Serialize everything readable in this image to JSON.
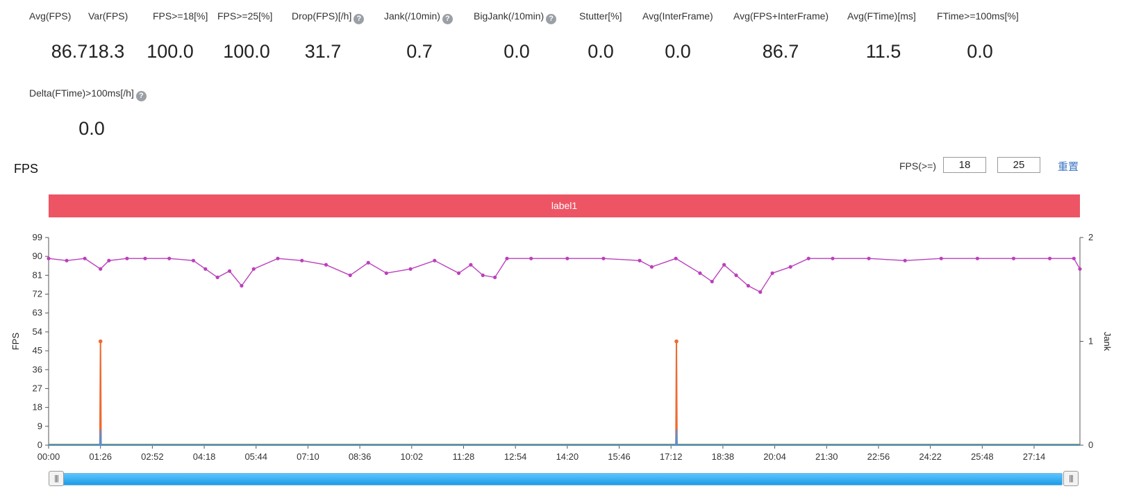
{
  "metrics": [
    {
      "label": "Avg(FPS)",
      "value": "86.7",
      "help": false
    },
    {
      "label": "Var(FPS)",
      "value": "18.3",
      "help": false
    },
    {
      "label": "FPS>=18[%]",
      "value": "100.0",
      "help": false
    },
    {
      "label": "FPS>=25[%]",
      "value": "100.0",
      "help": false
    },
    {
      "label": "Drop(FPS)[/h]",
      "value": "31.7",
      "help": true
    },
    {
      "label": "Jank(/10min)",
      "value": "0.7",
      "help": true
    },
    {
      "label": "BigJank(/10min)",
      "value": "0.0",
      "help": true
    },
    {
      "label": "Stutter[%]",
      "value": "0.0",
      "help": false
    },
    {
      "label": "Avg(InterFrame)",
      "value": "0.0",
      "help": false
    },
    {
      "label": "Avg(FPS+InterFrame)",
      "value": "86.7",
      "help": false
    },
    {
      "label": "Avg(FTime)[ms]",
      "value": "11.5",
      "help": false
    },
    {
      "label": "FTime>=100ms[%]",
      "value": "0.0",
      "help": false
    },
    {
      "label": "Delta(FTime)>100ms[/h]",
      "value": "0.0",
      "help": true
    }
  ],
  "chart_title": "FPS",
  "fps_threshold": {
    "label": "FPS(>=)",
    "value1": "18",
    "value2": "25"
  },
  "reset_label": "重置",
  "label_bar": "label1",
  "colors": {
    "fps": "#bc3fbc",
    "jank": "#ee6a32",
    "bigjank": "#5a8fd6",
    "baseline": "#7a9b3a",
    "label_bar": "#ed5565",
    "link": "#3a75c4"
  },
  "chart_data": {
    "type": "line",
    "xlabel": "",
    "ylabel": "FPS",
    "y2label": "Jank",
    "ylim": [
      0,
      99
    ],
    "y2lim": [
      0,
      2
    ],
    "yticks": [
      0,
      9,
      18,
      27,
      36,
      45,
      54,
      63,
      72,
      81,
      90,
      99
    ],
    "y2ticks": [
      0,
      1,
      2
    ],
    "xticks": [
      "00:00",
      "01:26",
      "02:52",
      "04:18",
      "05:44",
      "07:10",
      "08:36",
      "10:02",
      "11:28",
      "12:54",
      "14:20",
      "15:46",
      "17:12",
      "18:38",
      "20:04",
      "21:30",
      "22:56",
      "24:22",
      "25:48",
      "27:14"
    ],
    "x_range_seconds": [
      0,
      1710
    ],
    "series": [
      {
        "name": "FPS",
        "axis": "left",
        "x": [
          0,
          30,
          60,
          86,
          100,
          130,
          160,
          200,
          240,
          260,
          280,
          300,
          320,
          340,
          380,
          420,
          460,
          500,
          530,
          560,
          600,
          640,
          680,
          700,
          720,
          740,
          760,
          800,
          860,
          920,
          980,
          1000,
          1040,
          1080,
          1100,
          1120,
          1140,
          1160,
          1180,
          1200,
          1230,
          1260,
          1300,
          1360,
          1420,
          1480,
          1540,
          1600,
          1660,
          1700,
          1710
        ],
        "values": [
          89,
          88,
          89,
          84,
          88,
          89,
          89,
          89,
          88,
          84,
          80,
          83,
          76,
          84,
          89,
          88,
          86,
          81,
          87,
          82,
          84,
          88,
          82,
          86,
          81,
          80,
          89,
          89,
          89,
          89,
          88,
          85,
          89,
          82,
          78,
          86,
          81,
          76,
          73,
          82,
          85,
          89,
          89,
          89,
          88,
          89,
          89,
          89,
          89,
          89,
          84
        ]
      },
      {
        "name": "Jank",
        "axis": "right",
        "x": [
          0,
          85,
          86,
          87,
          1040,
          1041,
          1042,
          1710
        ],
        "values": [
          0,
          0,
          1,
          0,
          0,
          1,
          0,
          0
        ]
      },
      {
        "name": "BigJank",
        "axis": "right",
        "x": [
          0,
          85,
          86,
          87,
          1040,
          1041,
          1042,
          1710
        ],
        "values": [
          0,
          0,
          0.15,
          0,
          0,
          0.15,
          0,
          0
        ]
      }
    ]
  },
  "slider": {
    "left_handle": "|||",
    "right_handle": "|||"
  }
}
